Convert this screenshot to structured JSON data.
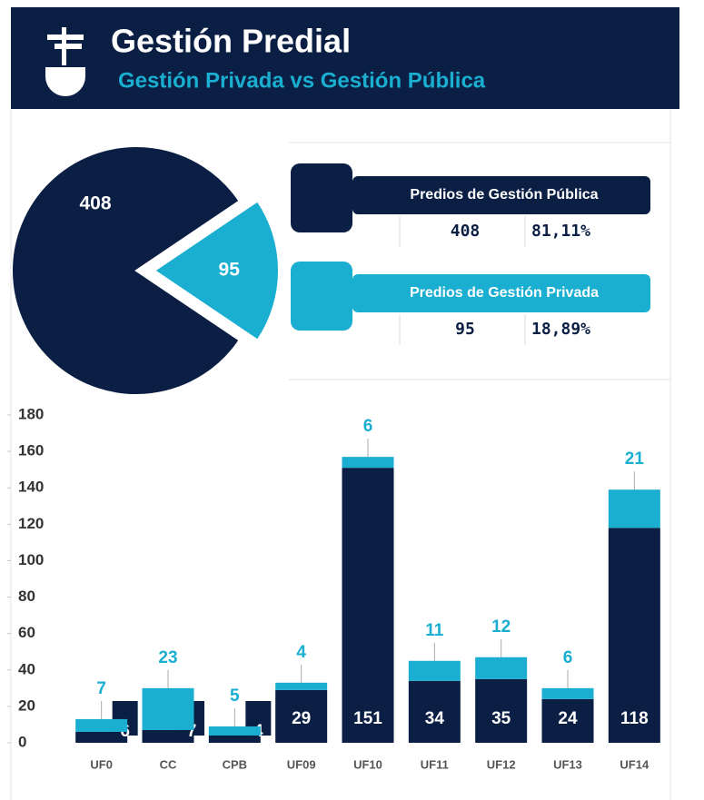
{
  "header": {
    "title": "Gestión Predial",
    "subtitle": "Gestión Privada vs Gestión Pública"
  },
  "chart_data": [
    {
      "type": "pie",
      "categories": [
        "Predios de Gestión Pública",
        "Predios de Gestión Privada"
      ],
      "values": [
        408,
        95
      ],
      "colors": [
        "#0b1f44",
        "#1aaed1"
      ],
      "percentages": [
        81.11,
        18.89
      ],
      "percentage_labels": [
        "81,11%",
        "18,89%"
      ]
    },
    {
      "type": "bar",
      "stacked": true,
      "categories": [
        "UF0",
        "CC",
        "CPB",
        "UF09",
        "UF10",
        "UF11",
        "UF12",
        "UF13",
        "UF14"
      ],
      "series": [
        {
          "color": "#0b1f44",
          "values": [
            6,
            7,
            4,
            29,
            151,
            34,
            35,
            24,
            118
          ]
        },
        {
          "color": "#1aaed1",
          "values": [
            7,
            23,
            5,
            4,
            6,
            11,
            12,
            6,
            21
          ]
        }
      ],
      "ylim": [
        0,
        180
      ],
      "yticks": [
        0,
        20,
        40,
        60,
        80,
        100,
        120,
        140,
        160,
        180
      ]
    }
  ]
}
